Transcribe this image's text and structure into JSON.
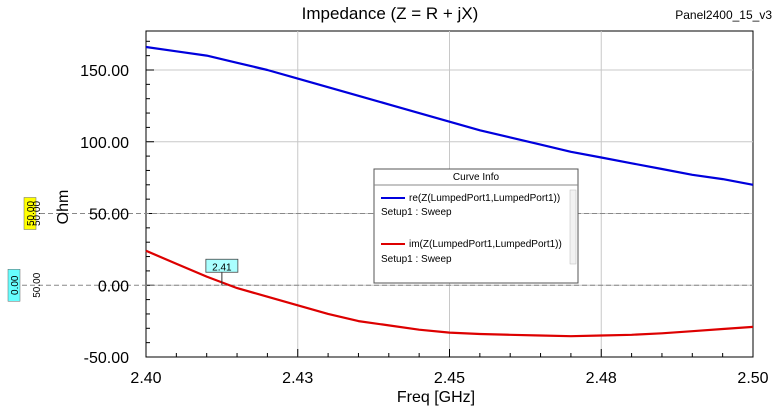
{
  "header": {
    "title": "Impedance (Z = R + jX)",
    "design_name": "Panel2400_15_v3"
  },
  "legend": {
    "title": "Curve Info",
    "entries": [
      {
        "name": "re(Z(LumpedPort1,LumpedPort1))",
        "sub": "Setup1 : Sweep",
        "color": "#0000dd"
      },
      {
        "name": "im(Z(LumpedPort1,LumpedPort1))",
        "sub": "Setup1 : Sweep",
        "color": "#dd0000"
      }
    ]
  },
  "markers": {
    "freq_marker": {
      "label": "2.41",
      "x": 2.4125,
      "y": 0
    },
    "ref_lines": [
      {
        "value": 50,
        "tag": "50.00",
        "mid_label": "50.00",
        "tag_color": "#ffff00"
      },
      {
        "value": 0,
        "tag": "0.00",
        "mid_label": "50.00",
        "tag_color": "#66ffff"
      }
    ]
  },
  "chart_data": {
    "type": "line",
    "title": "Impedance (Z = R + jX)",
    "xlabel": "Freq [GHz]",
    "ylabel": "Ohm",
    "xlim": [
      2.4,
      2.5
    ],
    "ylim": [
      -50,
      175
    ],
    "x_ticks": [
      2.4,
      2.425,
      2.45,
      2.475,
      2.5
    ],
    "x_tick_labels": [
      "2.40",
      "2.43",
      "2.45",
      "2.48",
      "2.50"
    ],
    "y_ticks": [
      -50,
      0,
      50,
      100,
      150
    ],
    "y_tick_labels": [
      "-50.00",
      "0.00",
      "50.00",
      "100.00",
      "150.00"
    ],
    "grid": true,
    "legend_position": "center-right",
    "series": [
      {
        "name": "re(Z(LumpedPort1,LumpedPort1))",
        "color": "#0000dd",
        "x": [
          2.4,
          2.405,
          2.41,
          2.415,
          2.42,
          2.425,
          2.43,
          2.435,
          2.44,
          2.445,
          2.45,
          2.455,
          2.46,
          2.465,
          2.47,
          2.475,
          2.48,
          2.485,
          2.49,
          2.495,
          2.5
        ],
        "values": [
          166,
          163,
          160,
          155,
          150,
          144,
          138,
          132,
          126,
          120,
          114,
          108,
          103,
          98,
          93,
          89,
          85,
          81,
          77,
          74,
          70
        ]
      },
      {
        "name": "im(Z(LumpedPort1,LumpedPort1))",
        "color": "#dd0000",
        "x": [
          2.4,
          2.405,
          2.41,
          2.415,
          2.42,
          2.425,
          2.43,
          2.435,
          2.44,
          2.445,
          2.45,
          2.455,
          2.46,
          2.465,
          2.47,
          2.475,
          2.48,
          2.485,
          2.49,
          2.495,
          2.5
        ],
        "values": [
          24,
          15,
          6,
          -2,
          -8,
          -14,
          -20,
          -25,
          -28,
          -31,
          -33,
          -34,
          -34.5,
          -35,
          -35.5,
          -35,
          -34.5,
          -33.5,
          -32,
          -30.5,
          -29
        ]
      }
    ]
  }
}
